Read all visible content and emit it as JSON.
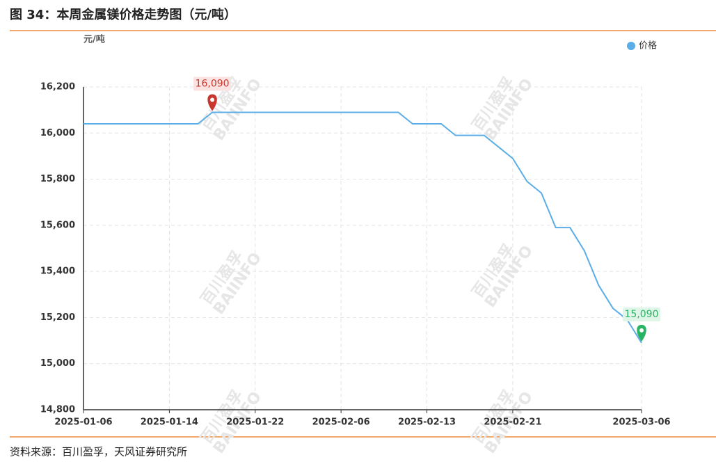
{
  "chart_data": {
    "type": "line",
    "title": "图 34：本周金属镁价格走势图（元/吨）",
    "y_unit": "元/吨",
    "source": "资料来源：百川盈孚，天风证券研究所",
    "watermark": {
      "cn": "百川盈孚",
      "en": "BAIINFO"
    },
    "categories": [
      "2025-01-06",
      null,
      null,
      null,
      null,
      null,
      "2025-01-14",
      null,
      null,
      null,
      null,
      null,
      "2025-01-22",
      null,
      null,
      null,
      null,
      null,
      "2025-02-06",
      null,
      null,
      null,
      null,
      null,
      "2025-02-13",
      null,
      null,
      null,
      null,
      null,
      "2025-02-21",
      null,
      null,
      null,
      null,
      null,
      null,
      null,
      null,
      "2025-03-06"
    ],
    "series": [
      {
        "name": "价格",
        "color": "#5aade6",
        "values": [
          16040,
          16040,
          16040,
          16040,
          16040,
          16040,
          16040,
          16040,
          16040,
          16090,
          16090,
          16090,
          16090,
          16090,
          16090,
          16090,
          16090,
          16090,
          16090,
          16090,
          16090,
          16090,
          16090,
          16040,
          16040,
          16040,
          15990,
          15990,
          15990,
          15940,
          15890,
          15790,
          15740,
          15590,
          15590,
          15490,
          15340,
          15240,
          15190,
          15090
        ],
        "value_labels": [
          null,
          null,
          null,
          null,
          null,
          null,
          null,
          null,
          null,
          "16,090",
          null,
          null,
          null,
          null,
          null,
          null,
          null,
          null,
          null,
          null,
          null,
          null,
          null,
          null,
          null,
          null,
          null,
          null,
          null,
          null,
          null,
          null,
          null,
          null,
          null,
          null,
          null,
          null,
          null,
          "15,090"
        ]
      }
    ],
    "ylim": [
      14800,
      16200
    ],
    "yticks": [
      {
        "value": 14800,
        "label": "14,800"
      },
      {
        "value": 15000,
        "label": "15,000"
      },
      {
        "value": 15200,
        "label": "15,200"
      },
      {
        "value": 15400,
        "label": "15,400"
      },
      {
        "value": 15600,
        "label": "15,600"
      },
      {
        "value": 15800,
        "label": "15,800"
      },
      {
        "value": 16000,
        "label": "16,000"
      },
      {
        "value": 16200,
        "label": "16,200"
      }
    ],
    "grid": true,
    "legend": "top-right"
  }
}
